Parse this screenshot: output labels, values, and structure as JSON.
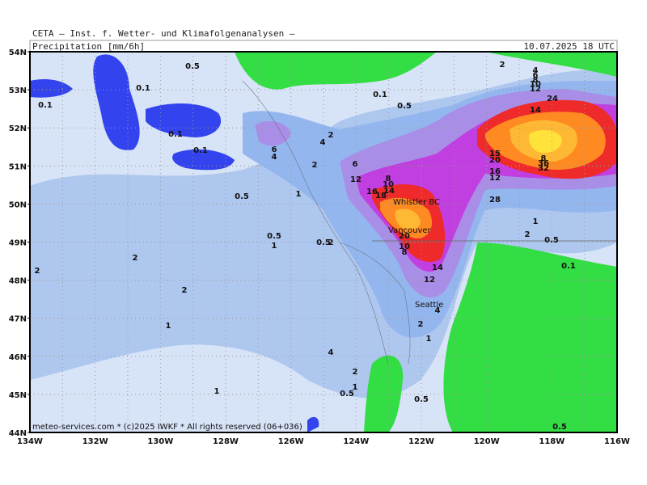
{
  "header": {
    "source": "CETA — Inst. f. Wetter- und Klimafolgenanalysen —",
    "variable": "Precipitation_[mm/6h]",
    "valid_time": "10.07.2025 18 UTC"
  },
  "latitude_labels": [
    "54N",
    "53N",
    "52N",
    "51N",
    "50N",
    "49N",
    "48N",
    "47N",
    "46N",
    "45N",
    "44N"
  ],
  "longitude_labels": [
    "134W",
    "132W",
    "130W",
    "128W",
    "126W",
    "124W",
    "122W",
    "120W",
    "118W",
    "116W"
  ],
  "cities": [
    "Whistler BC",
    "Vancouver",
    "Seattle"
  ],
  "contour_labels": [
    "0.5",
    "0.1",
    "0.1",
    "0.1",
    "0.1",
    "0.5",
    "0.5",
    "1",
    "2",
    "2",
    "2",
    "1",
    "1",
    "6",
    "4",
    "2",
    "4",
    "2",
    "1",
    "6",
    "12",
    "8",
    "10",
    "14",
    "16",
    "18",
    "20",
    "10",
    "8",
    "14",
    "12",
    "2",
    "4",
    "2",
    "1",
    "4",
    "2",
    "1",
    "0.5",
    "0.5",
    "0.1",
    "0.5",
    "2",
    "4",
    "6",
    "8",
    "10",
    "12",
    "14",
    "24",
    "15",
    "20",
    "16",
    "12",
    "8",
    "36",
    "32",
    "28",
    "1",
    "2",
    "0.5",
    "0.1",
    "0.5",
    "0.5"
  ],
  "footer": "meteo-services.com * (c)2025 IWKF * All rights reserved (06+036)"
}
